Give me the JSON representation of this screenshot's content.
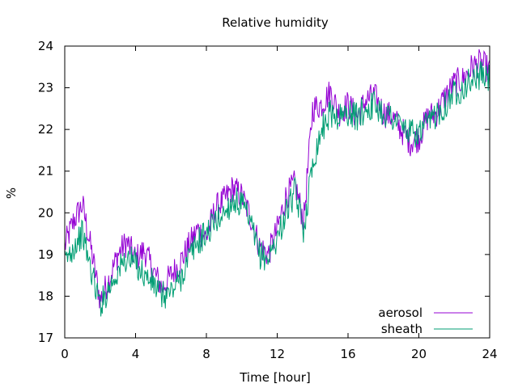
{
  "chart_data": {
    "type": "line",
    "title": "Relative humidity",
    "xlabel": "Time [hour]",
    "ylabel": "%",
    "xlim": [
      0,
      24
    ],
    "ylim": [
      17,
      24
    ],
    "x_ticks": [
      0,
      4,
      8,
      12,
      16,
      20,
      24
    ],
    "y_ticks": [
      17,
      18,
      19,
      20,
      21,
      22,
      23,
      24
    ],
    "grid": false,
    "legend_position": "bottom-right",
    "x_sample_step": 0.5,
    "series": [
      {
        "name": "aerosol",
        "color": "#9400d3",
        "x": [
          0,
          0.5,
          1,
          1.5,
          2,
          2.5,
          3,
          3.5,
          4,
          4.5,
          5,
          5.5,
          6,
          6.5,
          7,
          7.5,
          8,
          8.5,
          9,
          9.5,
          10,
          10.5,
          11,
          11.5,
          12,
          12.5,
          13,
          13.5,
          14,
          14.5,
          15,
          15.5,
          16,
          16.5,
          17,
          17.5,
          18,
          18.5,
          19,
          19.5,
          20,
          20.5,
          21,
          21.5,
          22,
          22.5,
          23,
          23.5,
          24
        ],
        "values": [
          19.2,
          19.8,
          20.2,
          19.1,
          17.9,
          18.4,
          19.0,
          19.3,
          18.9,
          19.1,
          18.6,
          18.2,
          18.5,
          18.8,
          19.2,
          19.6,
          19.4,
          20.1,
          20.3,
          20.6,
          20.4,
          19.9,
          19.2,
          19.0,
          19.6,
          20.4,
          20.7,
          19.8,
          22.5,
          22.6,
          22.9,
          22.4,
          22.6,
          22.3,
          22.7,
          22.8,
          22.4,
          22.3,
          22.0,
          21.7,
          21.8,
          22.3,
          22.4,
          22.8,
          23.1,
          23.2,
          23.5,
          23.6,
          23.4
        ]
      },
      {
        "name": "sheath",
        "color": "#009e73",
        "x": [
          0,
          0.5,
          1,
          1.5,
          2,
          2.5,
          3,
          3.5,
          4,
          4.5,
          5,
          5.5,
          6,
          6.5,
          7,
          7.5,
          8,
          8.5,
          9,
          9.5,
          10,
          10.5,
          11,
          11.5,
          12,
          12.5,
          13,
          13.5,
          14,
          14.5,
          15,
          15.5,
          16,
          16.5,
          17,
          17.5,
          18,
          18.5,
          19,
          19.5,
          20,
          20.5,
          21,
          21.5,
          22,
          22.5,
          23,
          23.5,
          24
        ],
        "values": [
          18.8,
          19.2,
          19.5,
          18.6,
          17.8,
          18.2,
          18.6,
          18.9,
          18.8,
          18.5,
          18.3,
          18.0,
          18.1,
          18.4,
          18.9,
          19.3,
          19.5,
          19.8,
          20.0,
          20.3,
          20.2,
          19.7,
          19.0,
          18.9,
          19.4,
          20.0,
          20.5,
          19.6,
          21.2,
          22.0,
          22.4,
          22.3,
          22.4,
          22.3,
          22.5,
          22.6,
          22.4,
          22.3,
          22.1,
          21.9,
          21.9,
          22.1,
          22.4,
          22.6,
          22.9,
          23.0,
          23.2,
          23.3,
          23.2
        ]
      }
    ]
  }
}
